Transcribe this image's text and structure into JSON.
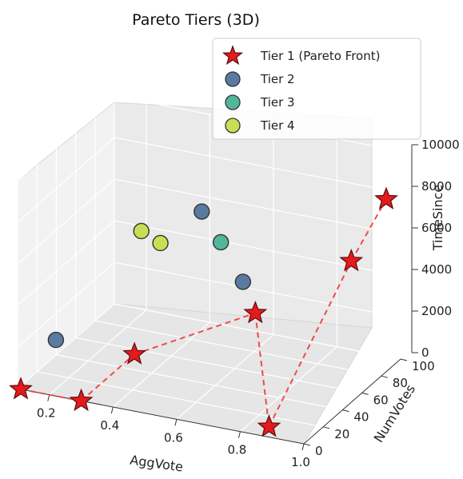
{
  "chart_data": {
    "type": "scatter3d",
    "title": "Pareto Tiers (3D)",
    "xlabel": "AggVote",
    "ylabel": "NumVotes",
    "zlabel": "TimeSince",
    "x_ticks": [
      "0.2",
      "0.4",
      "0.6",
      "0.8",
      "1.0"
    ],
    "y_ticks": [
      "0",
      "20",
      "40",
      "60",
      "80",
      "100"
    ],
    "z_ticks": [
      "0",
      "2000",
      "4000",
      "6000",
      "8000",
      "10000"
    ],
    "grid": true,
    "legend_position": "top-right",
    "series": [
      {
        "name": "Tier 1 (Pareto Front)",
        "marker": "star",
        "color": "#e41a1c",
        "points": [
          {
            "x": 0.11,
            "y": 0,
            "z": 0
          },
          {
            "x": 0.3,
            "y": 0,
            "z": 0
          },
          {
            "x": 0.3,
            "y": 55,
            "z": 0
          },
          {
            "x": 0.68,
            "y": 55,
            "z": 3100
          },
          {
            "x": 0.86,
            "y": 10,
            "z": 0
          },
          {
            "x": 0.86,
            "y": 95,
            "z": 4500
          },
          {
            "x": 0.97,
            "y": 95,
            "z": 7800
          }
        ]
      },
      {
        "name": "Tier 2",
        "marker": "circle",
        "color": "#5b7aa2",
        "points": [
          {
            "x": 0.19,
            "y": 10,
            "z": 2200
          },
          {
            "x": 0.39,
            "y": 95,
            "z": 5500
          },
          {
            "x": 0.55,
            "y": 85,
            "z": 3000
          }
        ]
      },
      {
        "name": "Tier 3",
        "marker": "circle",
        "color": "#52b69a",
        "points": [
          {
            "x": 0.45,
            "y": 95,
            "z": 4200
          }
        ]
      },
      {
        "name": "Tier 4",
        "marker": "circle",
        "color": "#c6df55",
        "points": [
          {
            "x": 0.2,
            "y": 95,
            "z": 4000
          },
          {
            "x": 0.26,
            "y": 95,
            "z": 3600
          }
        ]
      }
    ]
  }
}
